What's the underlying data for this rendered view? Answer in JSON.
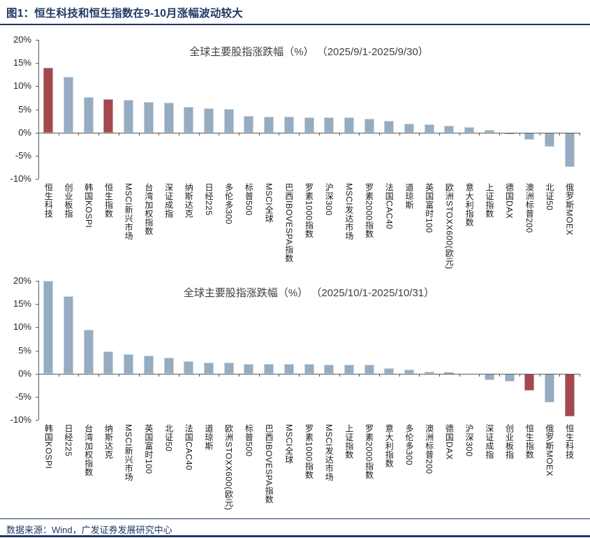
{
  "header": {
    "title": "图1：恒生科技和恒生指数在9-10月涨幅波动较大"
  },
  "footer": {
    "source": "数据来源：Wind，广发证券发展研究中心"
  },
  "colors": {
    "accent_navy": "#1f3864",
    "bar_default": "#95acc1",
    "bar_highlight": "#a3484c",
    "axis_line": "#595959"
  },
  "chart_data": [
    {
      "type": "bar",
      "title": "全球主要股指涨跌幅（%） （2025/9/1-2025/9/30）",
      "ylabel": "",
      "xlabel": "",
      "ylim": [
        -10,
        20
      ],
      "ytick_step": 5,
      "ytick_labels": [
        "20%",
        "15%",
        "10%",
        "5%",
        "0%",
        "-5%",
        "-10%"
      ],
      "grid": false,
      "legend": "none",
      "categories": [
        "恒生科技",
        "创业板指",
        "韩国KOSPI",
        "恒生指数",
        "MSCI新兴市场",
        "台湾加权指数",
        "深证成指",
        "纳斯达克",
        "日经225",
        "多伦多300",
        "标普500",
        "MSCI全球",
        "巴西IBOVESPA指数",
        "罗素1000指数",
        "沪深300",
        "MSCI发达市场",
        "罗素2000指数",
        "法国CAC40",
        "道琼斯",
        "英国富时100",
        "欧洲STOXX600(欧元)",
        "意大利指数",
        "上证指数",
        "德国DAX",
        "澳洲标普200",
        "北证50",
        "俄罗斯MOEX"
      ],
      "values": [
        14.0,
        12.0,
        7.6,
        7.2,
        7.0,
        6.6,
        6.5,
        5.6,
        5.2,
        5.1,
        3.5,
        3.4,
        3.4,
        3.3,
        3.3,
        3.2,
        3.0,
        2.5,
        1.9,
        1.8,
        1.4,
        1.1,
        0.6,
        -0.3,
        -1.6,
        -3.0,
        -7.5
      ],
      "highlight_indices": [
        0,
        3
      ],
      "unit": "%"
    },
    {
      "type": "bar",
      "title": "全球主要股指涨跌幅（%） （2025/10/1-2025/10/31）",
      "ylabel": "",
      "xlabel": "",
      "ylim": [
        -10,
        20
      ],
      "ytick_step": 5,
      "ytick_labels": [
        "20%",
        "15%",
        "10%",
        "5%",
        "0%",
        "-5%",
        "-10%"
      ],
      "grid": false,
      "legend": "none",
      "categories": [
        "韩国KOSPI",
        "日经225",
        "台湾加权指数",
        "纳斯达克",
        "MSCI新兴市场",
        "英国富时100",
        "北证50",
        "法国CAC40",
        "道琼斯",
        "欧洲STOXX600(欧元)",
        "标普500",
        "巴西IBOVESPA指数",
        "MSCI全球",
        "罗素1000指数",
        "MSCI发达市场",
        "上证指数",
        "罗素2000指数",
        "意大利指数",
        "多伦多300",
        "澳洲标普200",
        "德国DAX",
        "沪深300",
        "深证成指",
        "创业板指",
        "恒生指数",
        "俄罗斯MOEX",
        "恒生科技"
      ],
      "values": [
        20.0,
        16.7,
        9.4,
        4.7,
        4.1,
        3.8,
        3.4,
        2.7,
        2.3,
        2.3,
        2.1,
        2.1,
        2.0,
        2.0,
        1.9,
        1.9,
        1.9,
        1.2,
        0.9,
        0.4,
        0.3,
        0.0,
        -1.4,
        -1.7,
        -3.7,
        -6.3,
        -9.2
      ],
      "highlight_indices": [
        24,
        26
      ],
      "unit": "%"
    }
  ]
}
